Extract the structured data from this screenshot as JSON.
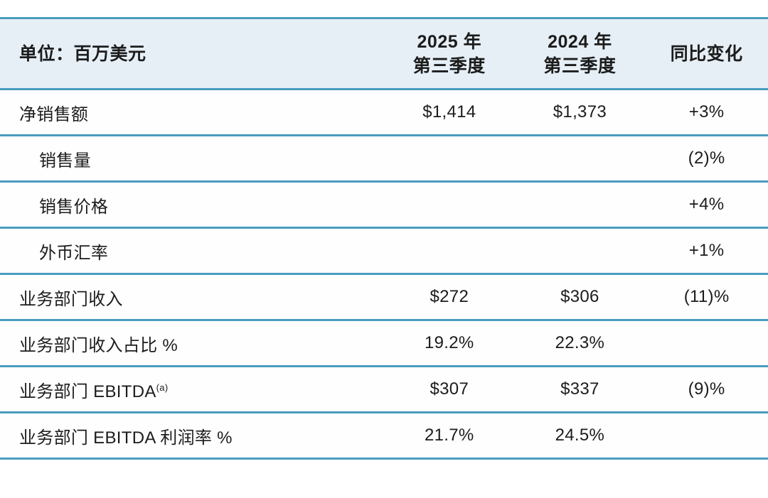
{
  "table": {
    "title_semantic": "segment-quarterly-results",
    "colors": {
      "header_bg": "#e6eff6",
      "divider": "#4a9cbe",
      "text": "#1c1c1c",
      "row_bg": "#fefefe"
    },
    "header": {
      "unit_label": "单位：百万美元",
      "col_2025_line1": "2025 年",
      "col_2025_line2": "第三季度",
      "col_2024_line1": "2024 年",
      "col_2024_line2": "第三季度",
      "col_yoy": "同比变化"
    },
    "rows": [
      {
        "label": "净销售额",
        "q3_2025": "$1,414",
        "q3_2024": "$1,373",
        "yoy": "+3%"
      },
      {
        "label": "销售量",
        "q3_2025": "",
        "q3_2024": "",
        "yoy": "(2)%"
      },
      {
        "label": "销售价格",
        "q3_2025": "",
        "q3_2024": "",
        "yoy": "+4%"
      },
      {
        "label": "外币汇率",
        "q3_2025": "",
        "q3_2024": "",
        "yoy": "+1%"
      },
      {
        "label": "业务部门收入",
        "q3_2025": "$272",
        "q3_2024": "$306",
        "yoy": "(11)%"
      },
      {
        "label": "业务部门收入占比 %",
        "q3_2025": "19.2%",
        "q3_2024": "22.3%",
        "yoy": ""
      },
      {
        "label": "业务部门 EBITDA",
        "sup": "(a)",
        "q3_2025": "$307",
        "q3_2024": "$337",
        "yoy": "(9)%"
      },
      {
        "label": "业务部门 EBITDA 利润率 %",
        "q3_2025": "21.7%",
        "q3_2024": "24.5%",
        "yoy": ""
      }
    ]
  }
}
